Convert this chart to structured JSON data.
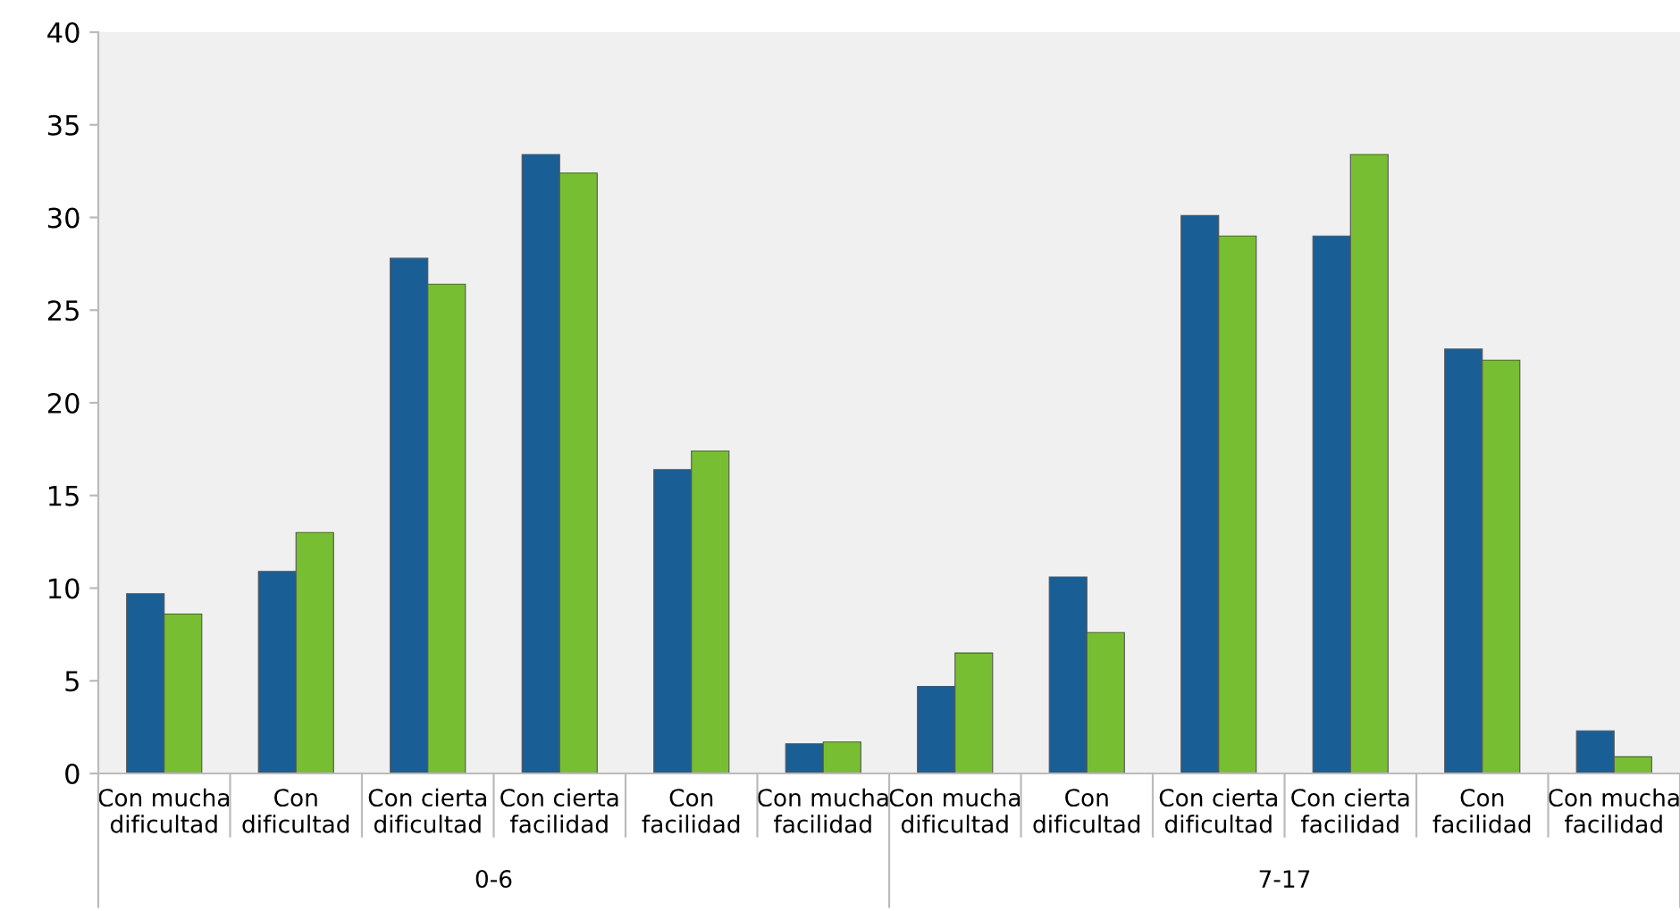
{
  "chart_data": {
    "type": "bar",
    "categories": [
      "Con mucha\ndificultad",
      "Con\ndificultad",
      "Con cierta\ndificultad",
      "Con cierta\nfacilidad",
      "Con\nfacilidad",
      "Con mucha\nfacilidad",
      "Con mucha\ndificultad",
      "Con\ndificultad",
      "Con cierta\ndificultad",
      "Con cierta\nfacilidad",
      "Con\nfacilidad",
      "Con mucha\nfacilidad"
    ],
    "series": [
      {
        "color": "#1a5e96",
        "values": [
          9.7,
          10.9,
          27.8,
          33.4,
          16.4,
          1.6,
          4.7,
          10.6,
          30.1,
          29.0,
          22.9,
          2.3
        ]
      },
      {
        "color": "#78be32",
        "values": [
          8.6,
          13.0,
          26.4,
          32.4,
          17.4,
          1.7,
          6.5,
          7.6,
          29.0,
          33.4,
          22.3,
          0.9
        ]
      }
    ],
    "annotations": [
      "0-6",
      "7-17"
    ],
    "ylim": [
      0,
      40
    ],
    "yticks": [
      0,
      5,
      10,
      15,
      20,
      25,
      30,
      35,
      40
    ],
    "grid": false,
    "legend": false
  }
}
